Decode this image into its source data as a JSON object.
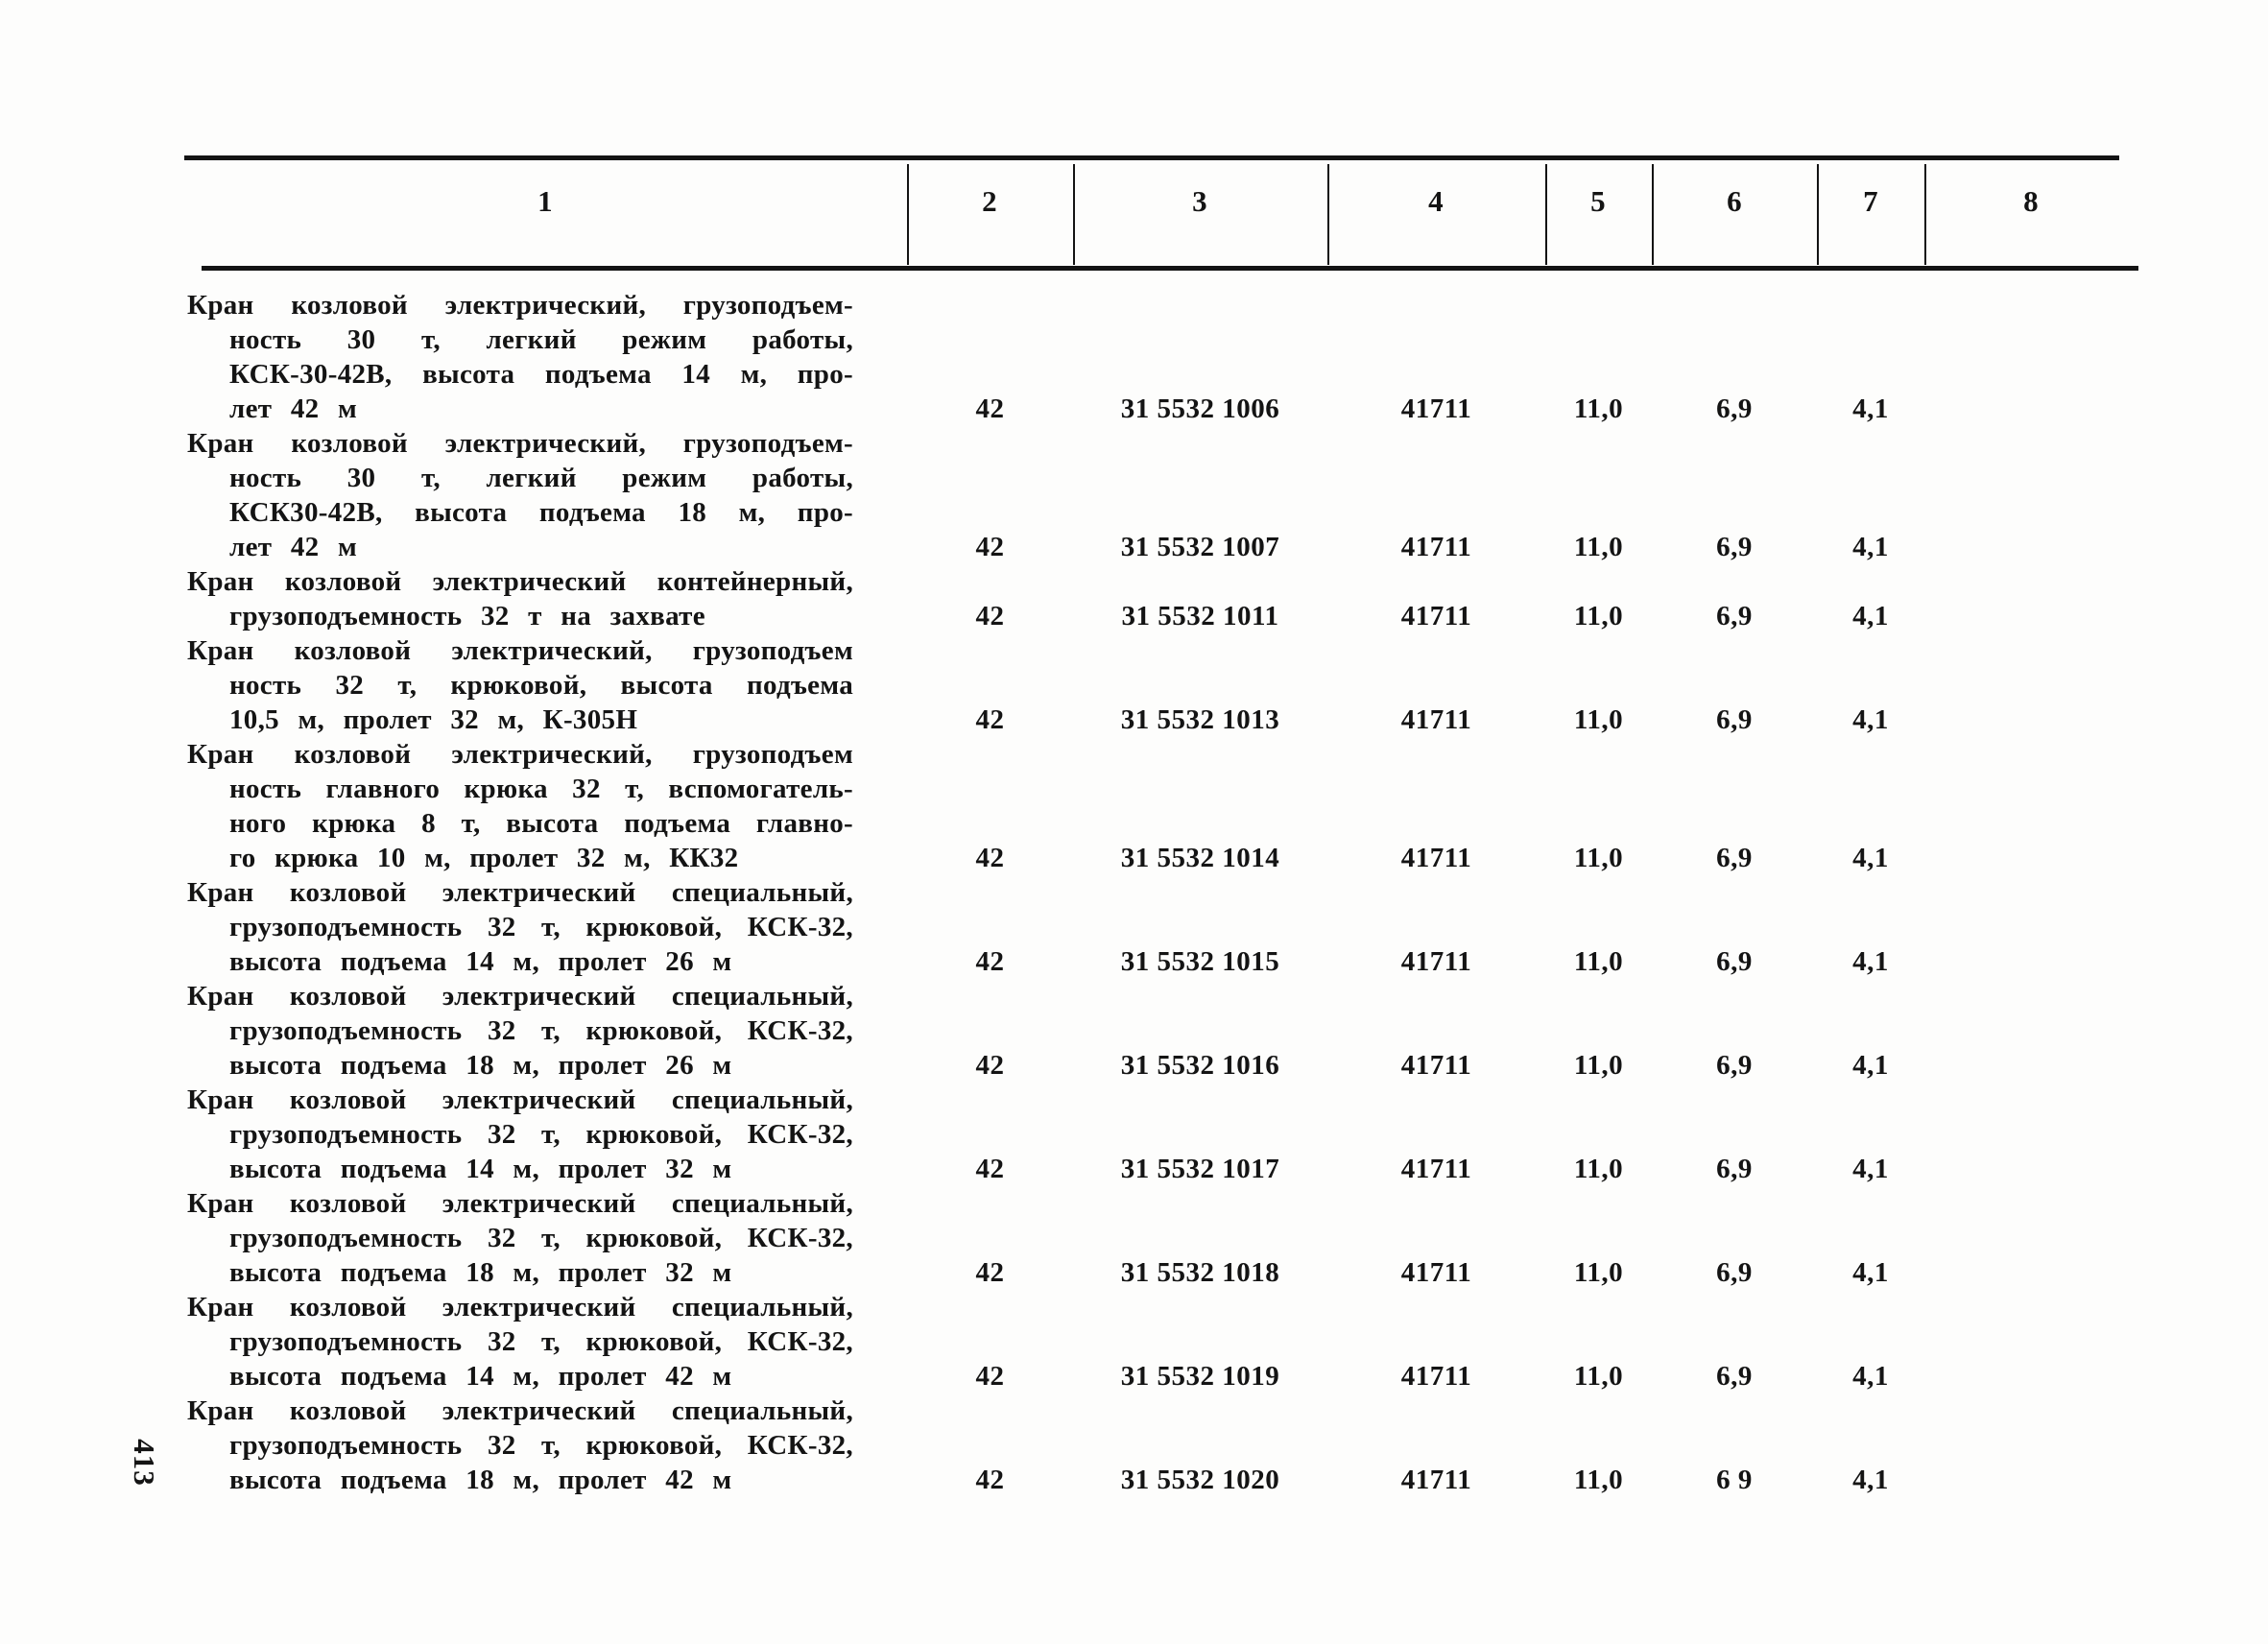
{
  "page": {
    "vertical_page_number": "413"
  },
  "table": {
    "column_headers": [
      "1",
      "2",
      "3",
      "4",
      "5",
      "6",
      "7",
      "8"
    ],
    "rows": [
      {
        "desc_lines": [
          "Кран козловой электрический, грузоподъем-",
          "ность 30 т, легкий режим работы,",
          "КСК-30-42В, высота подъема 14 м, про-",
          "лет 42 м"
        ],
        "c2": "42",
        "c3": "31 5532 1006",
        "c4": "41711",
        "c5": "11,0",
        "c6": "6,9",
        "c7": "4,1",
        "c8": ""
      },
      {
        "desc_lines": [
          "Кран козловой электрический, грузоподъем-",
          "ность 30 т, легкий режим работы,",
          "КСК30-42В, высота подъема 18 м, про-",
          "лет 42 м"
        ],
        "c2": "42",
        "c3": "31 5532 1007",
        "c4": "41711",
        "c5": "11,0",
        "c6": "6,9",
        "c7": "4,1",
        "c8": ""
      },
      {
        "desc_lines": [
          "Кран козловой электрический контейнерный,",
          "грузоподъемность 32 т на захвате"
        ],
        "c2": "42",
        "c3": "31 5532 1011",
        "c4": "41711",
        "c5": "11,0",
        "c6": "6,9",
        "c7": "4,1",
        "c8": ""
      },
      {
        "desc_lines": [
          "Кран козловой электрический, грузоподъем",
          "ность 32 т, крюковой, высота подъема",
          "10,5 м, пролет 32 м, К-305Н"
        ],
        "c2": "42",
        "c3": "31 5532 1013",
        "c4": "41711",
        "c5": "11,0",
        "c6": "6,9",
        "c7": "4,1",
        "c8": ""
      },
      {
        "desc_lines": [
          "Кран козловой электрический, грузоподъем",
          "ность главного крюка 32 т, вспомогатель-",
          "ного крюка 8 т, высота подъема главно-",
          "го крюка 10 м, пролет 32 м, КК32"
        ],
        "c2": "42",
        "c3": "31 5532 1014",
        "c4": "41711",
        "c5": "11,0",
        "c6": "6,9",
        "c7": "4,1",
        "c8": ""
      },
      {
        "desc_lines": [
          "Кран козловой электрический специальный,",
          "грузоподъемность 32 т, крюковой, КСК-32,",
          "высота подъема 14 м, пролет 26 м"
        ],
        "c2": "42",
        "c3": "31 5532 1015",
        "c4": "41711",
        "c5": "11,0",
        "c6": "6,9",
        "c7": "4,1",
        "c8": ""
      },
      {
        "desc_lines": [
          "Кран козловой электрический специальный,",
          "грузоподъемность 32 т, крюковой, КСК-32,",
          "высота подъема 18 м, пролет 26 м"
        ],
        "c2": "42",
        "c3": "31 5532 1016",
        "c4": "41711",
        "c5": "11,0",
        "c6": "6,9",
        "c7": "4,1",
        "c8": ""
      },
      {
        "desc_lines": [
          "Кран козловой электрический специальный,",
          "грузоподъемность 32 т, крюковой, КСК-32,",
          "высота подъема 14 м, пролет 32 м"
        ],
        "c2": "42",
        "c3": "31 5532 1017",
        "c4": "41711",
        "c5": "11,0",
        "c6": "6,9",
        "c7": "4,1",
        "c8": ""
      },
      {
        "desc_lines": [
          "Кран козловой электрический специальный,",
          "грузоподъемность 32 т, крюковой, КСК-32,",
          "высота подъема 18 м, пролет 32 м"
        ],
        "c2": "42",
        "c3": "31 5532 1018",
        "c4": "41711",
        "c5": "11,0",
        "c6": "6,9",
        "c7": "4,1",
        "c8": ""
      },
      {
        "desc_lines": [
          "Кран козловой электрический специальный,",
          "грузоподъемность 32 т, крюковой, КСК-32,",
          "высота подъема 14 м, пролет 42 м"
        ],
        "c2": "42",
        "c3": "31 5532 1019",
        "c4": "41711",
        "c5": "11,0",
        "c6": "6,9",
        "c7": "4,1",
        "c8": ""
      },
      {
        "desc_lines": [
          "Кран козловой электрический специальный,",
          "грузоподъемность 32 т, крюковой, КСК-32,",
          "высота подъема 18 м, пролет 42 м"
        ],
        "c2": "42",
        "c3": "31 5532 1020",
        "c4": "41711",
        "c5": "11,0",
        "c6": "6 9",
        "c7": "4,1",
        "c8": ""
      }
    ]
  }
}
